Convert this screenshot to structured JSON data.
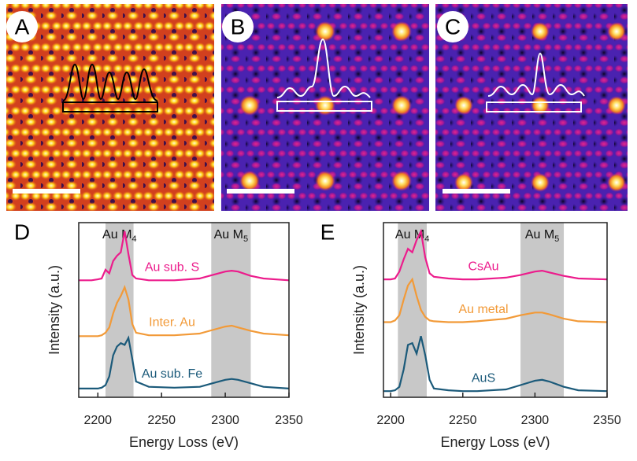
{
  "panels": [
    {
      "label": "A"
    },
    {
      "label": "B"
    },
    {
      "label": "C"
    }
  ],
  "chart_data": [
    {
      "type": "line",
      "label": "D",
      "xlabel": "Energy Loss (eV)",
      "ylabel": "Intensity (a.u.)",
      "xlim": [
        2185,
        2350
      ],
      "xticks": [
        2200,
        2250,
        2300,
        2350
      ],
      "ylim": [
        0,
        10
      ],
      "shaded_regions": [
        [
          2206,
          2228
        ],
        [
          2289,
          2320
        ]
      ],
      "annotations": [
        {
          "text": "Au M",
          "subscript": "4"
        },
        {
          "text": "Au M",
          "subscript": "5"
        }
      ],
      "x": [
        2185,
        2195,
        2200,
        2203,
        2206,
        2209,
        2212,
        2215,
        2218,
        2221,
        2224,
        2227,
        2230,
        2240,
        2260,
        2280,
        2290,
        2300,
        2305,
        2310,
        2320,
        2330,
        2350
      ],
      "series": [
        {
          "name": "Au sub. S",
          "color": "#ec1c8c",
          "values": [
            6.7,
            6.7,
            6.75,
            6.8,
            7.3,
            7.1,
            7.8,
            8.1,
            8.3,
            9.5,
            8.2,
            7.0,
            6.8,
            6.7,
            6.7,
            6.8,
            7.0,
            7.2,
            7.25,
            7.2,
            6.95,
            6.8,
            6.7
          ]
        },
        {
          "name": "Inter. Au",
          "color": "#f29a38",
          "values": [
            3.5,
            3.5,
            3.5,
            3.55,
            3.7,
            4.0,
            4.8,
            5.4,
            5.8,
            6.3,
            5.6,
            4.2,
            3.7,
            3.55,
            3.55,
            3.65,
            3.85,
            4.05,
            4.1,
            4.0,
            3.8,
            3.65,
            3.55
          ]
        },
        {
          "name": "Au sub. Fe",
          "color": "#1b5a7a",
          "values": [
            0.5,
            0.5,
            0.5,
            0.55,
            0.7,
            1.2,
            2.4,
            2.9,
            3.1,
            3.0,
            3.4,
            2.2,
            0.9,
            0.6,
            0.55,
            0.6,
            0.8,
            1.0,
            1.05,
            1.0,
            0.8,
            0.6,
            0.5
          ]
        }
      ]
    },
    {
      "type": "line",
      "label": "E",
      "xlabel": "Energy Loss (eV)",
      "ylabel": "Intensity (a.u.)",
      "xlim": [
        2195,
        2350
      ],
      "xticks": [
        2200,
        2250,
        2300,
        2350
      ],
      "ylim": [
        0,
        10
      ],
      "shaded_regions": [
        [
          2205,
          2225
        ],
        [
          2290,
          2320
        ]
      ],
      "annotations": [
        {
          "text": "Au M",
          "subscript": "4"
        },
        {
          "text": "Au M",
          "subscript": "5"
        }
      ],
      "x": [
        2195,
        2200,
        2203,
        2206,
        2209,
        2212,
        2215,
        2218,
        2221,
        2224,
        2227,
        2230,
        2240,
        2250,
        2260,
        2280,
        2290,
        2300,
        2305,
        2310,
        2320,
        2330,
        2350
      ],
      "series": [
        {
          "name": "CsAu",
          "color": "#ec1c8c",
          "values": [
            6.75,
            6.75,
            6.8,
            7.2,
            7.9,
            8.5,
            8.3,
            9.0,
            9.5,
            8.0,
            7.1,
            6.9,
            6.8,
            6.75,
            6.75,
            6.85,
            7.0,
            7.2,
            7.25,
            7.15,
            6.95,
            6.8,
            6.75
          ]
        },
        {
          "name": "Au metal",
          "color": "#f29a38",
          "values": [
            4.3,
            4.3,
            4.4,
            4.7,
            5.6,
            6.4,
            6.75,
            5.8,
            5.0,
            4.6,
            4.4,
            4.35,
            4.3,
            4.3,
            4.35,
            4.5,
            4.7,
            4.85,
            4.85,
            4.75,
            4.5,
            4.35,
            4.3
          ]
        },
        {
          "name": "AuS",
          "color": "#1b5a7a",
          "values": [
            0.35,
            0.35,
            0.4,
            0.6,
            1.6,
            3.0,
            3.1,
            2.5,
            3.5,
            2.4,
            1.0,
            0.5,
            0.4,
            0.35,
            0.35,
            0.45,
            0.7,
            0.95,
            1.0,
            0.9,
            0.6,
            0.4,
            0.35
          ]
        }
      ]
    }
  ]
}
